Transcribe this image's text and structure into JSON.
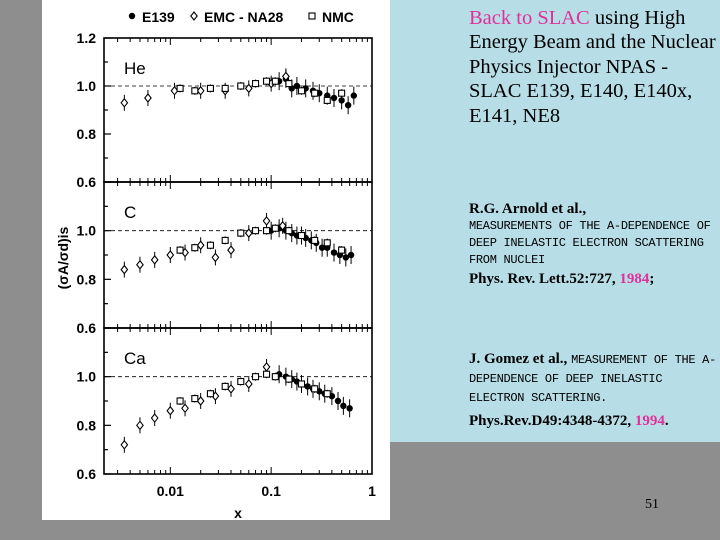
{
  "slide": {
    "heading_highlight": "Back to SLAC",
    "heading_rest": " using High Energy Beam and the Nuclear Physics Injector NPAS - SLAC E139, E140, E140x, E141, NE8",
    "page_number": "51"
  },
  "references": [
    {
      "authors": "R.G. Arnold et al.,",
      "title": "MEASUREMENTS OF THE A-DEPENDENCE OF  DEEP INELASTIC ELECTRON SCATTERING FROM NUCLEI",
      "journal": "Phys. Rev. Lett.52:727, ",
      "year": "1984",
      "suffix": ";"
    },
    {
      "authors": "J. Gomez et al., ",
      "title": "MEASUREMENT OF THE A-DEPENDENCE OF DEEP INELASTIC ELECTRON SCATTERING.",
      "journal": "Phys.Rev.D49:4348-4372, ",
      "year": "1994",
      "suffix": "."
    }
  ],
  "chart_data": {
    "type": "scatter",
    "legend": [
      "E139",
      "EMC - NA28",
      "NMC"
    ],
    "legend_markers": [
      "filled-circle",
      "diamond",
      "open-square"
    ],
    "legend_placement": "top",
    "xlabel": "x",
    "ylabel": "(σA/σd)is",
    "x_scale": "log",
    "xlim": [
      0.0022,
      1.0
    ],
    "x_ticks": [
      "0.01",
      "0.1",
      "1"
    ],
    "panels": [
      {
        "label": "He",
        "ylim": [
          0.6,
          1.2
        ],
        "y_ticks": [
          "1.2",
          "1.0",
          "0.8",
          "0.6"
        ],
        "series": [
          {
            "name": "E139",
            "marker": "filled-circle",
            "x": [
              0.12,
              0.14,
              0.16,
              0.18,
              0.22,
              0.26,
              0.3,
              0.36,
              0.42,
              0.5,
              0.58,
              0.66
            ],
            "y": [
              1.02,
              1.03,
              0.99,
              1.0,
              0.99,
              0.98,
              0.97,
              0.96,
              0.95,
              0.94,
              0.92,
              0.96
            ]
          },
          {
            "name": "EMC - NA28",
            "marker": "diamond",
            "x": [
              0.0035,
              0.006,
              0.011,
              0.02,
              0.035,
              0.06,
              0.1,
              0.14
            ],
            "y": [
              0.93,
              0.95,
              0.98,
              0.98,
              0.98,
              0.99,
              1.01,
              1.04
            ]
          },
          {
            "name": "NMC",
            "marker": "open-square",
            "x": [
              0.0125,
              0.0175,
              0.025,
              0.035,
              0.05,
              0.07,
              0.09,
              0.11,
              0.15,
              0.2,
              0.27,
              0.36,
              0.5
            ],
            "y": [
              0.99,
              0.98,
              0.99,
              0.99,
              1.0,
              1.01,
              1.02,
              1.02,
              1.01,
              0.98,
              0.97,
              0.94,
              0.97
            ]
          }
        ]
      },
      {
        "label": "C",
        "ylim": [
          0.6,
          1.2
        ],
        "y_ticks": [
          "1.0",
          "0.8",
          "0.6"
        ],
        "series": [
          {
            "name": "E139",
            "marker": "filled-circle",
            "x": [
              0.1,
              0.12,
              0.14,
              0.16,
              0.18,
              0.2,
              0.22,
              0.25,
              0.28,
              0.32,
              0.36,
              0.42,
              0.48,
              0.55,
              0.62
            ],
            "y": [
              1.0,
              1.01,
              1.0,
              0.99,
              0.98,
              0.98,
              0.97,
              0.96,
              0.95,
              0.93,
              0.93,
              0.91,
              0.9,
              0.89,
              0.9
            ]
          },
          {
            "name": "EMC - NA28",
            "marker": "diamond",
            "x": [
              0.0035,
              0.005,
              0.007,
              0.01,
              0.014,
              0.02,
              0.028,
              0.04,
              0.06,
              0.09,
              0.13
            ],
            "y": [
              0.84,
              0.86,
              0.88,
              0.9,
              0.91,
              0.94,
              0.89,
              0.92,
              0.99,
              1.04,
              1.02
            ]
          },
          {
            "name": "NMC",
            "marker": "open-square",
            "x": [
              0.0125,
              0.0175,
              0.025,
              0.035,
              0.05,
              0.07,
              0.09,
              0.11,
              0.15,
              0.2,
              0.27,
              0.36,
              0.5
            ],
            "y": [
              0.92,
              0.93,
              0.94,
              0.96,
              0.99,
              1.0,
              1.0,
              1.01,
              1.0,
              0.98,
              0.96,
              0.95,
              0.92
            ]
          }
        ]
      },
      {
        "label": "Ca",
        "ylim": [
          0.6,
          1.2
        ],
        "y_ticks": [
          "1.0",
          "0.8",
          "0.6"
        ],
        "series": [
          {
            "name": "E139",
            "marker": "filled-circle",
            "x": [
              0.12,
              0.14,
              0.16,
              0.18,
              0.2,
              0.23,
              0.26,
              0.3,
              0.34,
              0.4,
              0.46,
              0.52,
              0.6
            ],
            "y": [
              1.01,
              1.0,
              0.99,
              0.98,
              0.97,
              0.96,
              0.95,
              0.94,
              0.93,
              0.92,
              0.9,
              0.88,
              0.87
            ]
          },
          {
            "name": "EMC - NA28",
            "marker": "diamond",
            "x": [
              0.0035,
              0.005,
              0.007,
              0.01,
              0.014,
              0.02,
              0.028,
              0.04,
              0.06,
              0.09
            ],
            "y": [
              0.72,
              0.8,
              0.83,
              0.86,
              0.87,
              0.9,
              0.92,
              0.95,
              0.97,
              1.04
            ]
          },
          {
            "name": "NMC",
            "marker": "open-square",
            "x": [
              0.0125,
              0.0175,
              0.025,
              0.035,
              0.05,
              0.07,
              0.09,
              0.11,
              0.15,
              0.2,
              0.27,
              0.36
            ],
            "y": [
              0.9,
              0.91,
              0.93,
              0.96,
              0.98,
              1.0,
              1.01,
              1.0,
              0.99,
              0.97,
              0.95,
              0.93
            ]
          }
        ]
      }
    ]
  }
}
